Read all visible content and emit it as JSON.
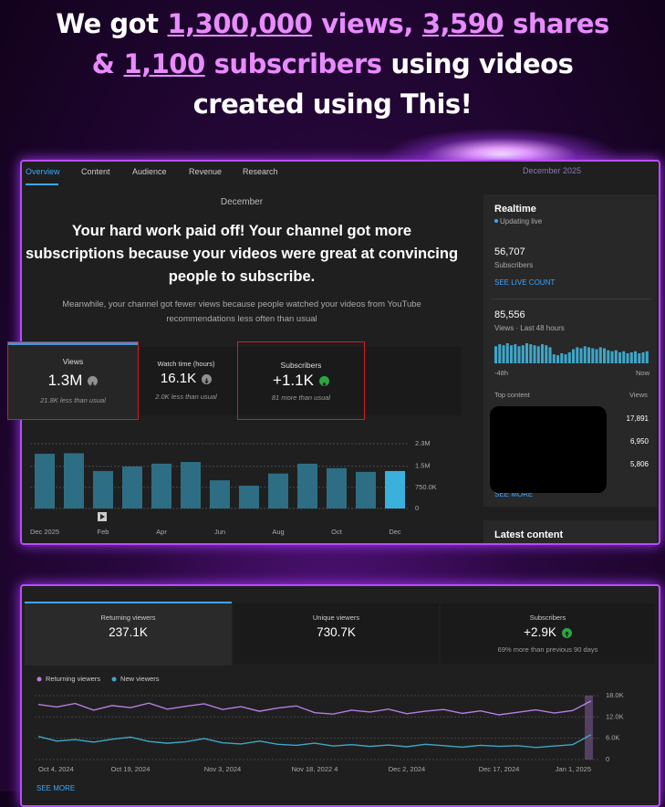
{
  "headline": {
    "lines": [
      [
        {
          "text": "We got",
          "tone": "plain"
        },
        {
          "text": "1,300,000",
          "tone": "number"
        },
        {
          "text": "views,",
          "tone": "accent"
        },
        {
          "text": "3,590",
          "tone": "number"
        },
        {
          "text": "shares",
          "tone": "accent"
        }
      ],
      [
        {
          "text": "&",
          "tone": "accent"
        },
        {
          "text": "1,100",
          "tone": "number"
        },
        {
          "text": "subscribers",
          "tone": "accent"
        },
        {
          "text": "using videos",
          "tone": "plain"
        }
      ],
      [
        {
          "text": "created using This!",
          "tone": "plain"
        }
      ]
    ]
  },
  "panel1": {
    "tabs": [
      "Overview",
      "Content",
      "Audience",
      "Revenue",
      "Research"
    ],
    "period": "December 2025",
    "month": "December",
    "heading": "Your hard work paid off! Your channel got more subscriptions because your videos were great at convincing people to subscribe.",
    "subtext": "Meanwhile, your channel got fewer views because people watched your videos from YouTube recommendations less often than usual",
    "cards": [
      {
        "label": "Views",
        "value": "1.3M",
        "trend": "down",
        "note": "21.8K less than usual"
      },
      {
        "label": "Watch time (hours)",
        "value": "16.1K",
        "trend": "down",
        "note": "2.0K less than usual"
      },
      {
        "label": "Subscribers",
        "value": "+1.1K",
        "trend": "up",
        "note": "81 more than usual"
      }
    ]
  },
  "sidebar": {
    "title": "Realtime",
    "status": "Updating live",
    "subscribers": "56,707",
    "subscribers_label": "Subscribers",
    "live_link": "SEE LIVE COUNT",
    "views": "85,556",
    "views_label": "Views · Last 48 hours",
    "start_label": "-48h",
    "end_label": "Now",
    "top_label": "Top content",
    "top_views_label": "Views",
    "top_views": [
      "17,891",
      "6,950",
      "5,806"
    ],
    "more": "SEE MORE",
    "latest": "Latest content"
  },
  "panel2": {
    "cards": [
      {
        "label": "Returning viewers",
        "value": "237.1K"
      },
      {
        "label": "Unique viewers",
        "value": "730.7K"
      },
      {
        "label": "Subscribers",
        "value": "+2.9K",
        "note": "69% more than previous 90 days"
      }
    ],
    "more": "SEE MORE"
  },
  "chart_data": [
    {
      "type": "bar",
      "categories": [
        "Dec 2025",
        null,
        "Feb",
        null,
        "Apr",
        null,
        "Jun",
        null,
        "Aug",
        null,
        "Oct",
        null,
        "Dec"
      ],
      "values": [
        1940000,
        1960000,
        1330000,
        1490000,
        1590000,
        1650000,
        1000000,
        810000,
        1240000,
        1590000,
        1430000,
        1300000,
        1330000
      ],
      "colors": [
        "#2e6e84",
        "#2e6e84",
        "#2e6e84",
        "#2e6e84",
        "#2e6e84",
        "#2e6e84",
        "#2e6e84",
        "#2e6e84",
        "#2e6e84",
        "#2e6e84",
        "#2e6e84",
        "#2e6e84",
        "#3ab0dc"
      ],
      "ylim": [
        0,
        2300000
      ],
      "yticks": [
        0,
        {
          "value": 750000,
          "label": "750.0K"
        },
        {
          "value": 1500000,
          "label": "1.5M"
        },
        {
          "value": 2300000,
          "label": "2.3M"
        }
      ],
      "grid": true
    },
    {
      "type": "line",
      "categories": [
        "Oct 4, 2024",
        null,
        null,
        null,
        null,
        "Oct 19, 2024",
        null,
        null,
        null,
        null,
        "Nov 3, 2024",
        null,
        null,
        null,
        null,
        "Nov 18, 2022 4",
        null,
        null,
        null,
        null,
        "Dec 2, 2024",
        null,
        null,
        null,
        null,
        "Dec 17, 2024",
        null,
        null,
        null,
        null,
        "Jan 1, 2025"
      ],
      "series": [
        {
          "name": "Returning viewers",
          "color": "#b67ee0",
          "values": [
            15500,
            14800,
            15800,
            13900,
            15200,
            14600,
            15900,
            14200,
            15000,
            15700,
            14100,
            14900,
            13600,
            14500,
            15100,
            13200,
            12800,
            13900,
            13400,
            14200,
            12900,
            13600,
            14100,
            13000,
            13700,
            12600,
            13300,
            14000,
            13100,
            13800,
            16500
          ]
        },
        {
          "name": "New viewers",
          "color": "#3ea6c8",
          "values": [
            6500,
            5200,
            5600,
            4900,
            5700,
            6300,
            5100,
            4600,
            5000,
            5900,
            4700,
            4400,
            5200,
            4300,
            4000,
            4600,
            3800,
            4200,
            3700,
            4100,
            3600,
            4300,
            3900,
            3500,
            4000,
            3700,
            3900,
            3400,
            3800,
            4200,
            7000
          ]
        }
      ],
      "ylim": [
        0,
        18000
      ],
      "yticks": [
        0,
        {
          "value": 6000,
          "label": "6.0K"
        },
        {
          "value": 12000,
          "label": "12.0K"
        },
        {
          "value": 18000,
          "label": "18.0K"
        }
      ],
      "grid": true
    },
    {
      "type": "bar",
      "color": "#3ea6c8",
      "values": [
        17,
        19,
        18,
        20,
        18,
        19,
        17,
        18,
        20,
        19,
        18,
        17,
        19,
        18,
        16,
        9,
        8,
        10,
        9,
        11,
        14,
        16,
        15,
        17,
        16,
        15,
        14,
        16,
        15,
        13,
        12,
        13,
        11,
        12,
        10,
        11,
        12,
        10,
        11,
        12
      ]
    }
  ]
}
